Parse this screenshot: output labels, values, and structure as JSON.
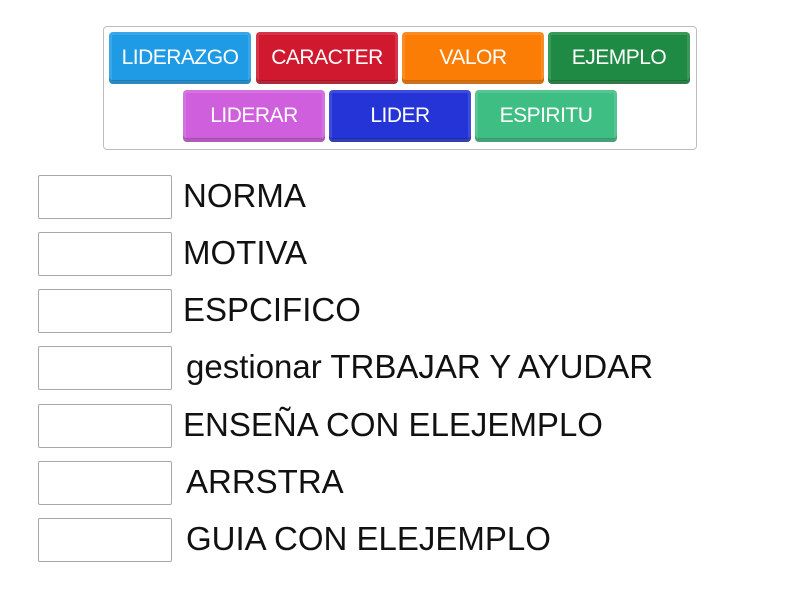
{
  "tiles": [
    {
      "label": "LIDERAZGO",
      "color": "#1e9be4"
    },
    {
      "label": "CARACTER",
      "color": "#d0192f"
    },
    {
      "label": "VALOR",
      "color": "#fb7d05"
    },
    {
      "label": "EJEMPLO",
      "color": "#1f8a43"
    },
    {
      "label": "LIDERAR",
      "color": "#cf5fdc"
    },
    {
      "label": "LIDER",
      "color": "#2434d6"
    },
    {
      "label": "ESPIRITU",
      "color": "#3fbe83"
    }
  ],
  "items": [
    {
      "label": "NORMA"
    },
    {
      "label": "MOTIVA"
    },
    {
      "label": "ESPCIFICO"
    },
    {
      "label": "gestionar TRBAJAR Y AYUDAR"
    },
    {
      "label": "ENSEÑA CON ELEJEMPLO"
    },
    {
      "label": "ARRSTRA"
    },
    {
      "label": "GUIA CON ELEJEMPLO"
    }
  ]
}
